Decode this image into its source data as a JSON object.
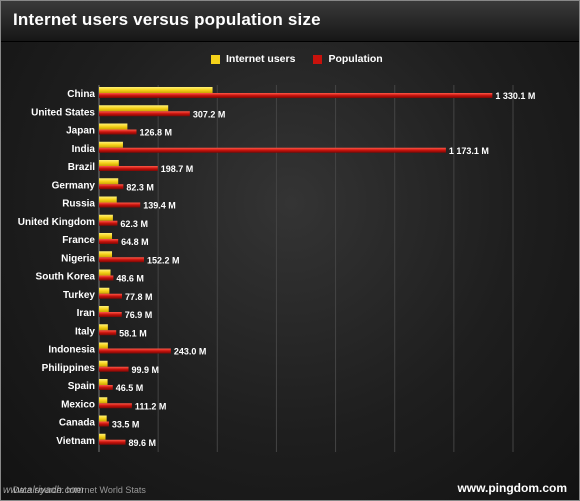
{
  "title": "Internet users versus population size",
  "source": "Data source: Internet World Stats",
  "brand": "www.pingdom.com",
  "watermark": "www.alriyadh.com",
  "colors": {
    "internet_users": "#f5d21a",
    "population": "#c8120c",
    "background": "#1b1b1b"
  },
  "chart_data": {
    "type": "bar",
    "orientation": "horizontal",
    "title": "Internet users versus population size",
    "legend": {
      "placement": "top-center",
      "entries": [
        "Internet users",
        "Population"
      ]
    },
    "grid": true,
    "xlim": [
      0,
      1400
    ],
    "categories": [
      "China",
      "United States",
      "Japan",
      "India",
      "Brazil",
      "Germany",
      "Russia",
      "United Kingdom",
      "France",
      "Nigeria",
      "South Korea",
      "Turkey",
      "Iran",
      "Italy",
      "Indonesia",
      "Philippines",
      "Spain",
      "Mexico",
      "Canada",
      "Vietnam"
    ],
    "series": [
      {
        "name": "Internet users",
        "values": [
          384,
          234,
          96,
          81,
          67,
          65,
          60,
          47,
          44,
          44,
          39,
          35,
          33,
          30,
          30,
          29,
          29,
          28,
          26,
          22
        ]
      },
      {
        "name": "Population",
        "values": [
          1330.1,
          307.2,
          126.8,
          1173.1,
          198.7,
          82.3,
          139.4,
          62.3,
          64.8,
          152.2,
          48.6,
          77.8,
          76.9,
          58.1,
          243.0,
          99.9,
          46.5,
          111.2,
          33.5,
          89.6
        ]
      }
    ],
    "population_labels": [
      "1 330.1 M",
      "307.2 M",
      "126.8 M",
      "1 173.1 M",
      "198.7 M",
      "82.3 M",
      "139.4 M",
      "62.3 M",
      "64.8 M",
      "152.2 M",
      "48.6 M",
      "77.8 M",
      "76.9 M",
      "58.1 M",
      "243.0 M",
      "99.9 M",
      "46.5 M",
      "111.2 M",
      "33.5 M",
      "89.6 M"
    ]
  }
}
